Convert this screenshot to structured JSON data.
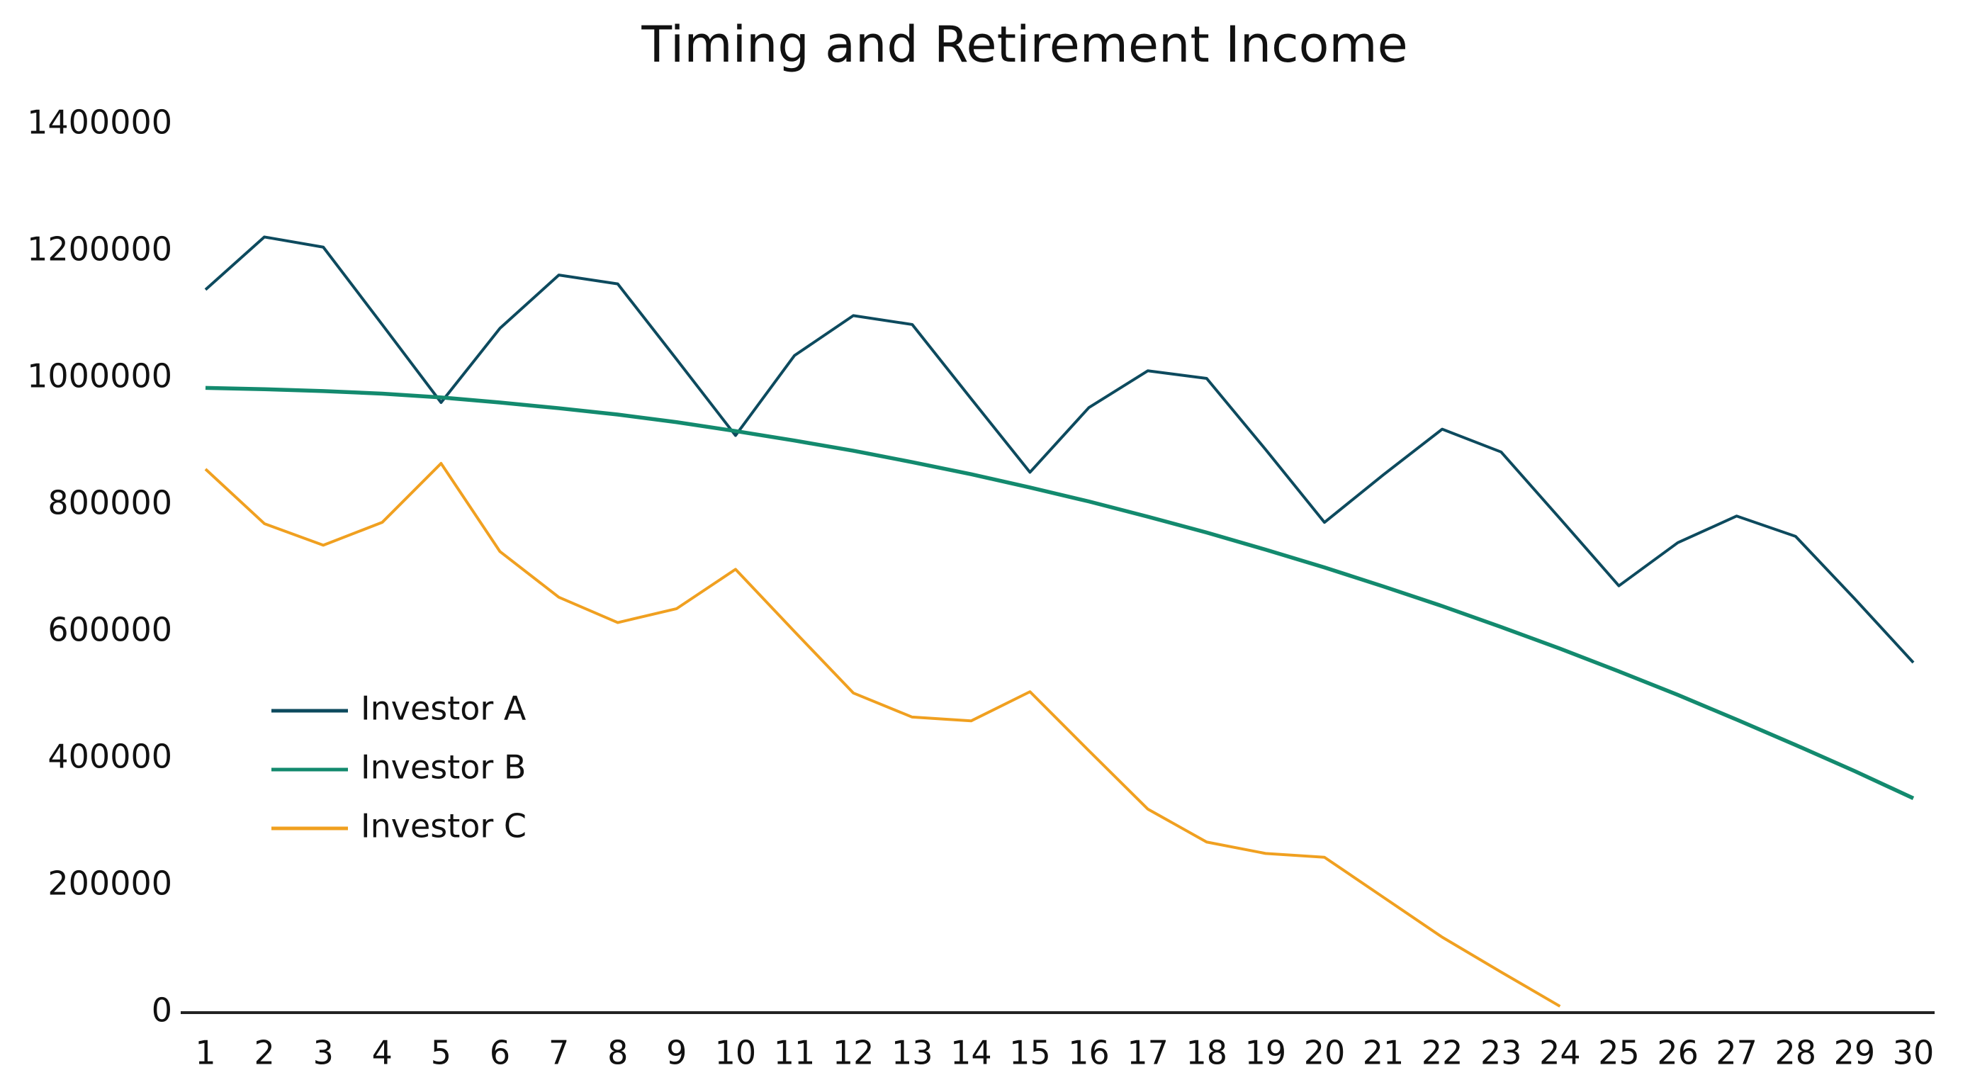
{
  "chart_data": {
    "type": "line",
    "title": "Timing and Retirement Income",
    "categories": [
      1,
      2,
      3,
      4,
      5,
      6,
      7,
      8,
      9,
      10,
      11,
      12,
      13,
      14,
      15,
      16,
      17,
      18,
      19,
      20,
      21,
      22,
      23,
      24,
      25,
      26,
      27,
      28,
      29,
      30
    ],
    "series": [
      {
        "name": "Investor A",
        "color": "#0d4a5e",
        "values": [
          1140000,
          1223000,
          1207000,
          1085000,
          962000,
          1079000,
          1163000,
          1149000,
          1030000,
          910000,
          1036000,
          1099000,
          1085000,
          968000,
          852000,
          954000,
          1012000,
          1000000,
          888000,
          773000,
          848000,
          920000,
          884000,
          779000,
          673000,
          741000,
          783000,
          751000,
          653000,
          552000
        ]
      },
      {
        "name": "Investor B",
        "color": "#138a6e",
        "values": [
          985000,
          983000,
          980000,
          976000,
          970000,
          962000,
          953000,
          943000,
          931000,
          917000,
          902000,
          886000,
          868000,
          849000,
          828000,
          806000,
          782000,
          757000,
          730000,
          702000,
          672000,
          641000,
          608000,
          574000,
          538000,
          501000,
          462000,
          422000,
          381000,
          338000
        ]
      },
      {
        "name": "Investor C",
        "color": "#f0a020",
        "values": [
          857000,
          771000,
          737000,
          773000,
          866000,
          727000,
          655000,
          615000,
          637000,
          699000,
          601000,
          504000,
          466000,
          460000,
          506000,
          413000,
          321000,
          269000,
          251000,
          245000,
          182000,
          119000,
          64000,
          10000,
          null,
          null,
          null,
          null,
          null,
          null
        ]
      }
    ],
    "ylim": [
      0,
      1400000
    ],
    "yticks": [
      0,
      200000,
      400000,
      600000,
      800000,
      1000000,
      1200000,
      1400000
    ],
    "grid": false,
    "legend": "left"
  }
}
